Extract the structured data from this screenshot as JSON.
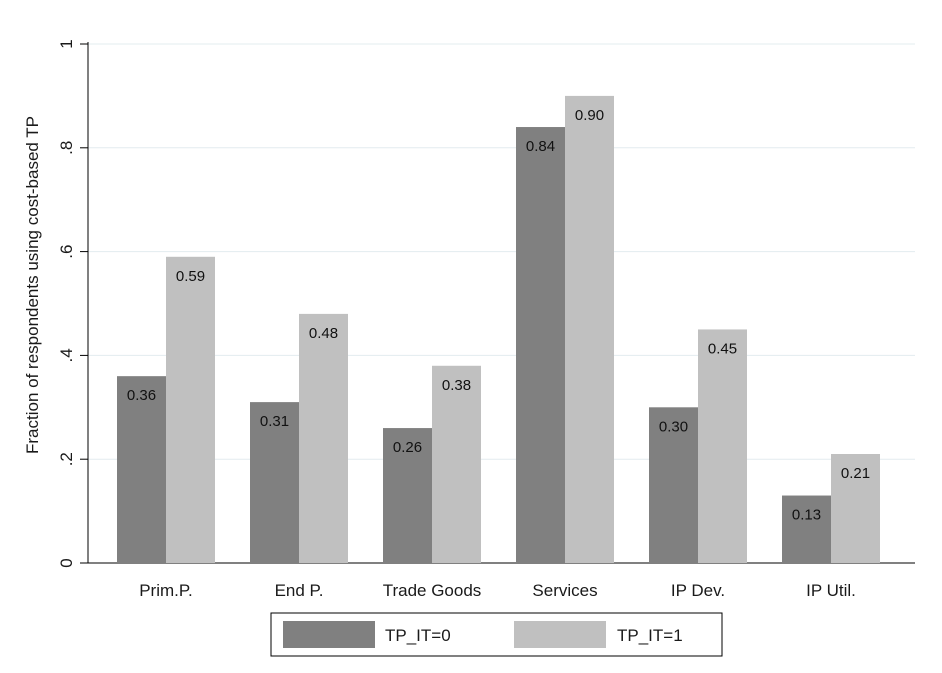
{
  "chart_data": {
    "type": "bar",
    "ylabel": "Fraction of respondents using cost-based TP",
    "xlabel": "",
    "ylim": [
      0,
      1
    ],
    "yticks": [
      0,
      0.2,
      0.4,
      0.6,
      0.8,
      1
    ],
    "ytick_labels": [
      "0",
      ".2",
      ".4",
      ".6",
      ".8",
      "1"
    ],
    "grid": true,
    "legend_position": "bottom",
    "categories": [
      "Prim.P.",
      "End P.",
      "Trade Goods",
      "Services",
      "IP Dev.",
      "IP Util."
    ],
    "series": [
      {
        "name": "TP_IT=0",
        "color": "#808080",
        "values": [
          0.36,
          0.31,
          0.26,
          0.84,
          0.3,
          0.13
        ],
        "labels": [
          "0.36",
          "0.31",
          "0.26",
          "0.84",
          "0.30",
          "0.13"
        ]
      },
      {
        "name": "TP_IT=1",
        "color": "#c0c0c0",
        "values": [
          0.59,
          0.48,
          0.38,
          0.9,
          0.45,
          0.21
        ],
        "labels": [
          "0.59",
          "0.48",
          "0.38",
          "0.90",
          "0.45",
          "0.21"
        ]
      }
    ]
  }
}
